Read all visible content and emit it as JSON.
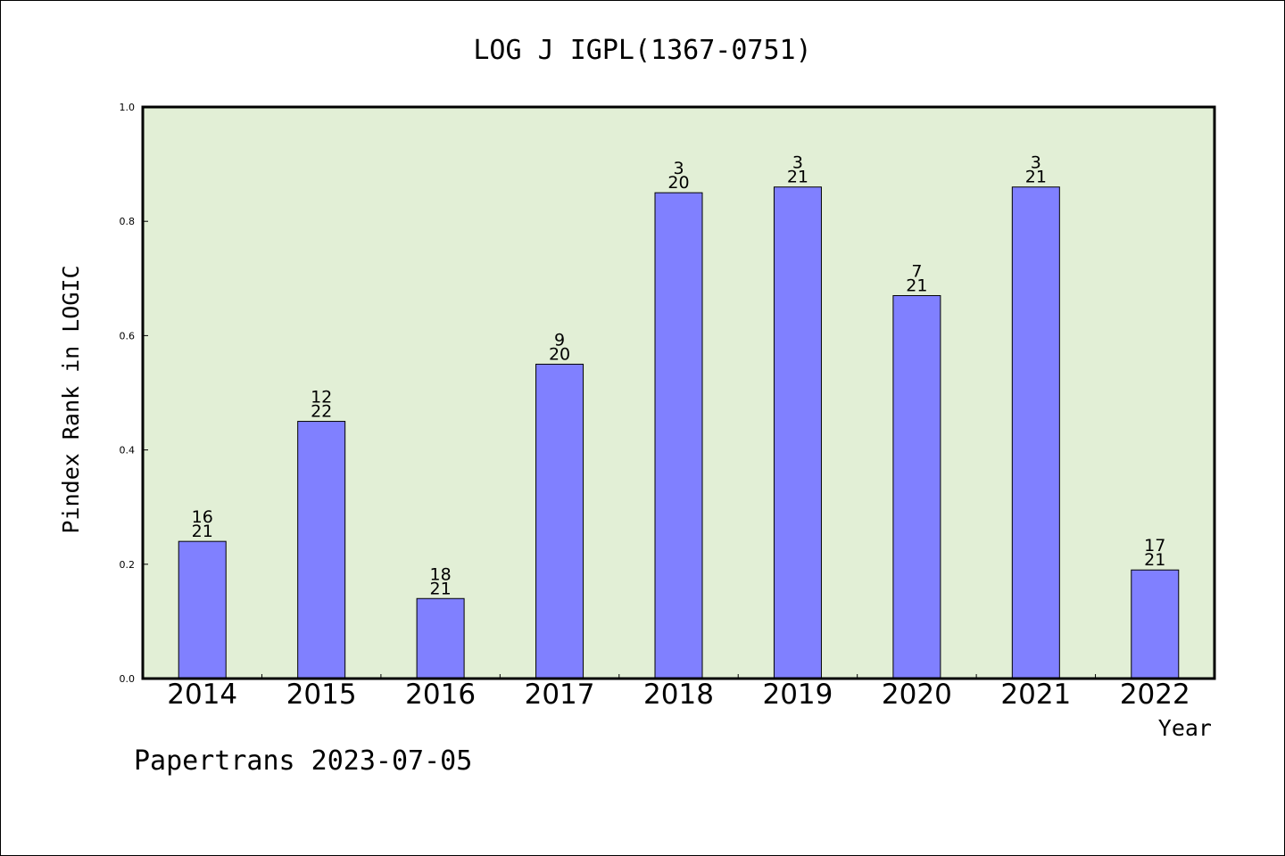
{
  "chart_data": {
    "type": "bar",
    "title": "LOG J IGPL(1367-0751)",
    "xlabel": "Year",
    "ylabel": "Pindex Rank in LOGIC",
    "footer": "Papertrans 2023-07-05",
    "ylim": [
      0.0,
      1.0
    ],
    "yticks": [
      "0.0",
      "0.2",
      "0.4",
      "0.6",
      "0.8",
      "1.0"
    ],
    "categories": [
      "2014",
      "2015",
      "2016",
      "2017",
      "2018",
      "2019",
      "2020",
      "2021",
      "2022"
    ],
    "values": [
      0.24,
      0.45,
      0.14,
      0.55,
      0.85,
      0.86,
      0.67,
      0.86,
      0.19
    ],
    "label_top": [
      "16",
      "12",
      "18",
      "9",
      "3",
      "3",
      "7",
      "3",
      "17"
    ],
    "label_bottom": [
      "21",
      "22",
      "21",
      "20",
      "20",
      "21",
      "21",
      "21",
      "21"
    ],
    "grid": false,
    "colors": {
      "plot_background": "#e2efd6",
      "bar_fill": "#8080ff",
      "bar_stroke": "#000000",
      "axis": "#000000"
    }
  }
}
